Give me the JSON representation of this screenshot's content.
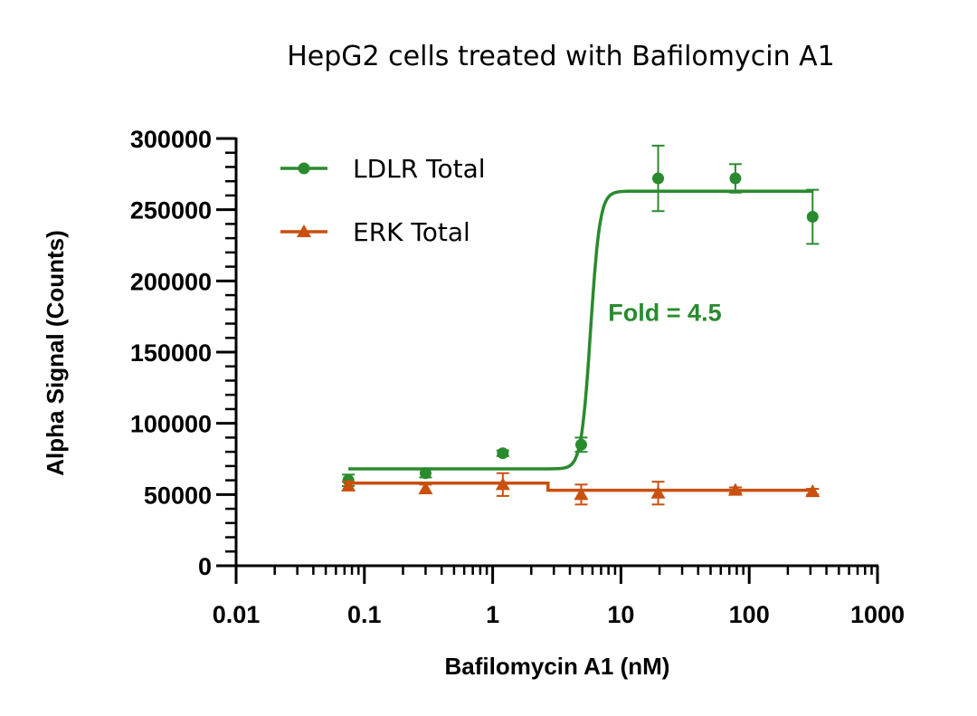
{
  "chart_data": {
    "type": "scatter",
    "title": "HepG2 cells treated with Bafilomycin A1",
    "xlabel": "Bafilomycin A1 (nM)",
    "ylabel": "Alpha Signal (Counts)",
    "x_scale": "log",
    "xlim": [
      0.01,
      1000
    ],
    "ylim": [
      0,
      300000
    ],
    "x_ticks": [
      0.01,
      0.1,
      1,
      10,
      100,
      1000
    ],
    "x_tick_labels": [
      "0.01",
      "0.1",
      "1",
      "10",
      "100",
      "1000"
    ],
    "y_ticks": [
      0,
      50000,
      100000,
      150000,
      200000,
      250000,
      300000
    ],
    "y_tick_labels": [
      "0",
      "50000",
      "100000",
      "150000",
      "200000",
      "250000",
      "300000"
    ],
    "legend_position": "top-left",
    "grid": false,
    "series": [
      {
        "name": "LDLR Total",
        "color": "#2a8a2e",
        "marker": "circle",
        "x": [
          0.075,
          0.3,
          1.2,
          4.9,
          19.5,
          78,
          312
        ],
        "y": [
          60000,
          65000,
          79000,
          85000,
          272000,
          272000,
          245000
        ],
        "error": [
          4000,
          3000,
          2000,
          5000,
          23000,
          10000,
          19000
        ],
        "fit": {
          "bottom": 68000,
          "top": 263000,
          "ec50": 5.8,
          "hill": 12,
          "x_range": [
            0.075,
            312
          ]
        }
      },
      {
        "name": "ERK Total",
        "color": "#c9500d",
        "marker": "triangle",
        "x": [
          0.075,
          0.3,
          1.2,
          4.9,
          19.5,
          78,
          312
        ],
        "y": [
          56000,
          54000,
          57000,
          50000,
          51000,
          53000,
          52000
        ],
        "error": [
          3000,
          3000,
          8000,
          7000,
          8000,
          2000,
          2000
        ],
        "fit": {
          "steps": [
            [
              0.075,
              58000
            ],
            [
              2.7,
              58000
            ],
            [
              2.7,
              53000
            ],
            [
              312,
              53000
            ]
          ]
        }
      }
    ],
    "annotations": [
      {
        "text": "Fold = 4.5",
        "x": 22,
        "y": 172000,
        "color": "#2a8a2e"
      }
    ]
  }
}
